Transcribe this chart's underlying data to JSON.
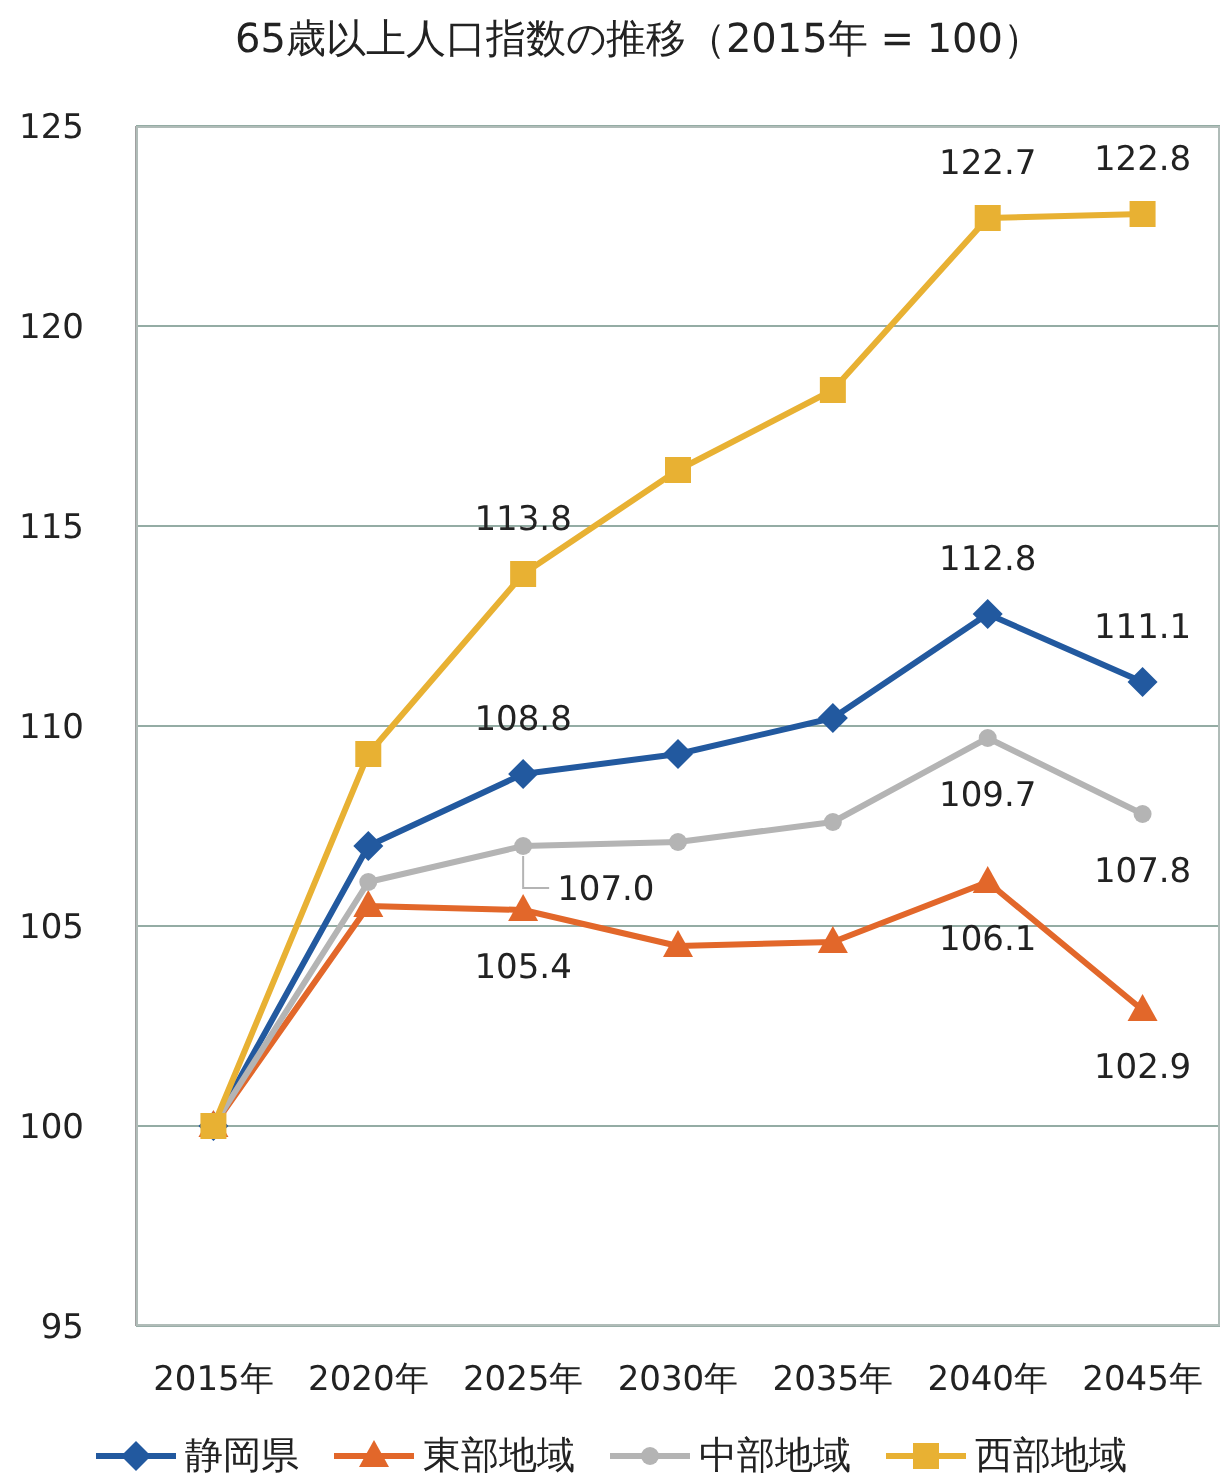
{
  "chart_data": {
    "type": "line",
    "title": "65歳以上人口指数の推移（2015年 = 100）",
    "categories": [
      "2015年",
      "2020年",
      "2025年",
      "2030年",
      "2035年",
      "2040年",
      "2045年"
    ],
    "series": [
      {
        "name": "静岡県",
        "color": "#22599f",
        "marker": "diamond",
        "values": [
          100,
          107.0,
          108.8,
          109.3,
          110.2,
          112.8,
          111.1
        ],
        "value_labels": [
          null,
          null,
          "108.8",
          null,
          null,
          "112.8",
          "111.1"
        ]
      },
      {
        "name": "東部地域",
        "color": "#e2672a",
        "marker": "triangle",
        "values": [
          100,
          105.5,
          105.4,
          104.5,
          104.6,
          106.1,
          102.9
        ],
        "value_labels": [
          null,
          null,
          "105.4",
          null,
          null,
          "106.1",
          "102.9"
        ]
      },
      {
        "name": "中部地域",
        "color": "#b4b4b4",
        "marker": "circle",
        "values": [
          100,
          106.1,
          107.0,
          107.1,
          107.6,
          109.7,
          107.8
        ],
        "value_labels": [
          null,
          null,
          "107.0",
          null,
          null,
          "109.7",
          "107.8"
        ]
      },
      {
        "name": "西部地域",
        "color": "#e8b133",
        "marker": "square",
        "values": [
          100,
          109.3,
          113.8,
          116.4,
          118.4,
          122.7,
          122.8
        ],
        "value_labels": [
          null,
          null,
          "113.8",
          null,
          null,
          "122.7",
          "122.8"
        ]
      }
    ],
    "ylim": [
      95,
      125
    ],
    "yticks": [
      95,
      100,
      105,
      110,
      115,
      120,
      125
    ],
    "grid": "y",
    "legend": "bottom",
    "line_style": "solid"
  }
}
